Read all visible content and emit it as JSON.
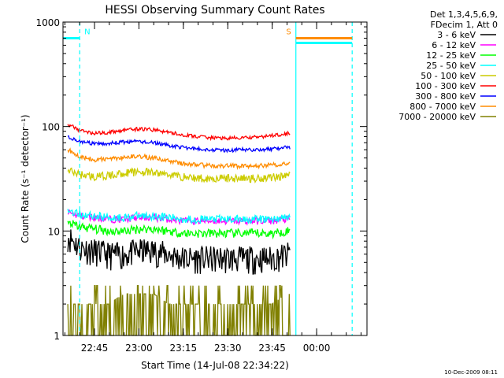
{
  "chart_data": {
    "type": "line",
    "title": "HESSI Observing Summary Count Rates",
    "xlabel": "Start Time (14-Jul-08 22:34:22)",
    "ylabel": "Count Rate (s⁻¹ detector⁻¹)",
    "yscale": "log",
    "ylim": [
      1,
      1000
    ],
    "xlim": [
      "22:34:22",
      "00:17:00"
    ],
    "x_ticks": [
      "22:45",
      "23:00",
      "23:15",
      "23:30",
      "23:45",
      "00:00"
    ],
    "y_ticks": [
      "1",
      "10",
      "100",
      "1000"
    ],
    "legend_header": [
      "Det 1,3,4,5,6,9,",
      "FDecim 1, Att 0"
    ],
    "legend_position": "right-outside",
    "timestamp": "10-Dec-2009 08:11",
    "flags": [
      {
        "label": "N",
        "start": "22:34:22",
        "end": "22:40:00",
        "value": 700,
        "color": "#00ffff"
      },
      {
        "label": "S",
        "start": "23:53:00",
        "end": "00:12:00",
        "value": 700,
        "color": "#ff8c00"
      }
    ],
    "vertical_markers": [
      {
        "time": "22:40:00",
        "color": "#00ffff",
        "style": "dashed"
      },
      {
        "time": "23:53:00",
        "color": "#00ffff",
        "style": "solid"
      },
      {
        "time": "00:12:00",
        "color": "#00ffff",
        "style": "dashed"
      }
    ],
    "data_end": "23:51:00",
    "x": [
      "22:36",
      "22:40",
      "22:45",
      "22:50",
      "22:55",
      "23:00",
      "23:05",
      "23:10",
      "23:15",
      "23:20",
      "23:25",
      "23:30",
      "23:35",
      "23:40",
      "23:45",
      "23:50"
    ],
    "series": [
      {
        "name": "3 - 6 keV",
        "color": "#000000",
        "values": [
          9,
          7,
          6.5,
          6,
          6,
          6.5,
          6.5,
          6,
          5.5,
          5.5,
          5.5,
          5.5,
          5.5,
          5.5,
          5.5,
          6
        ]
      },
      {
        "name": "6 - 12 keV",
        "color": "#ff00ff",
        "values": [
          15,
          14,
          13.5,
          13,
          13,
          13.5,
          13.5,
          13,
          12.5,
          12.5,
          12.5,
          12.5,
          12.5,
          12.5,
          12.5,
          13
        ]
      },
      {
        "name": "12 - 25 keV",
        "color": "#00ff00",
        "values": [
          12,
          11,
          10.5,
          10,
          10,
          10.5,
          10.5,
          10,
          9.5,
          9.5,
          9.5,
          9.5,
          9.5,
          9.5,
          9.5,
          10
        ]
      },
      {
        "name": "25 - 50 keV",
        "color": "#00ffff",
        "values": [
          16,
          14.5,
          14,
          13.5,
          13.5,
          14,
          14,
          13.5,
          13,
          13,
          13,
          13,
          13,
          13,
          13,
          13.5
        ]
      },
      {
        "name": "50 - 100 keV",
        "color": "#cccc00",
        "values": [
          38,
          35,
          33,
          34,
          36,
          37,
          36,
          35,
          33,
          32,
          32,
          32,
          32,
          32,
          33,
          34
        ]
      },
      {
        "name": "100 - 300 keV",
        "color": "#ff0000",
        "values": [
          105,
          92,
          86,
          88,
          92,
          95,
          93,
          88,
          83,
          80,
          78,
          77,
          78,
          79,
          82,
          86
        ]
      },
      {
        "name": "300 - 800 keV",
        "color": "#0000ff",
        "values": [
          80,
          72,
          68,
          69,
          71,
          72,
          70,
          66,
          63,
          61,
          60,
          59,
          60,
          60,
          61,
          63
        ]
      },
      {
        "name": "800 - 7000 keV",
        "color": "#ff8c00",
        "values": [
          60,
          52,
          48,
          49,
          51,
          52,
          50,
          47,
          44,
          43,
          42,
          42,
          42,
          42,
          43,
          44
        ]
      },
      {
        "name": "7000 - 20000 keV",
        "color": "#808000",
        "values": [
          2,
          2,
          2,
          2,
          2.5,
          2.5,
          2.5,
          2,
          2,
          2,
          2,
          2,
          2,
          2,
          2,
          2.5
        ]
      }
    ]
  }
}
